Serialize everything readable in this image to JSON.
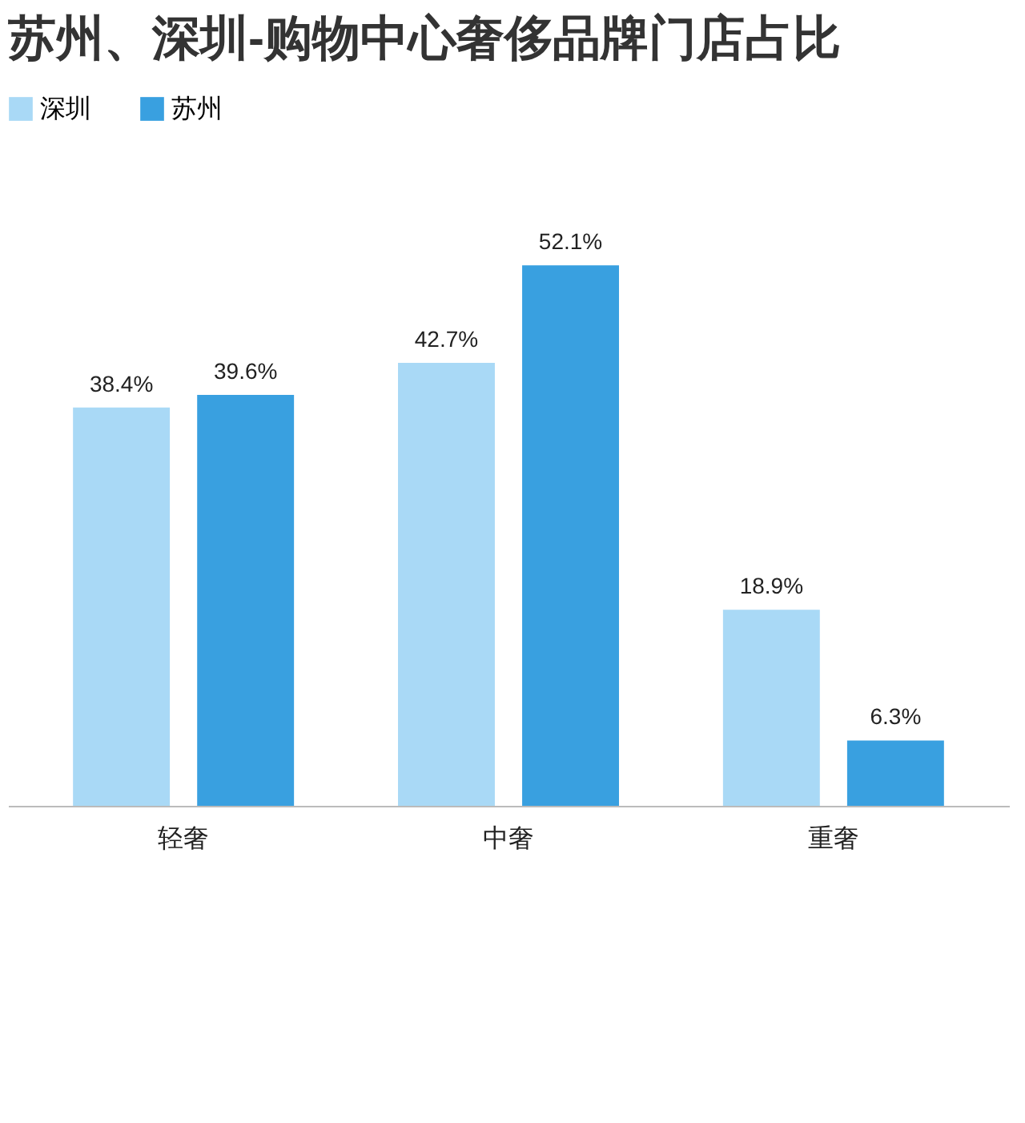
{
  "chart_data": {
    "type": "bar",
    "title": "苏州、深圳-购物中心奢侈品牌门店占比",
    "categories": [
      "轻奢",
      "中奢",
      "重奢"
    ],
    "series": [
      {
        "name": "深圳",
        "color": "#a9d9f6",
        "values": [
          38.4,
          42.7,
          18.9
        ],
        "value_labels": [
          "38.4%",
          "42.7%",
          "18.9%"
        ]
      },
      {
        "name": "苏州",
        "color": "#39a0e0",
        "values": [
          39.6,
          52.1,
          6.3
        ],
        "value_labels": [
          "39.6%",
          "52.1%",
          "6.3%"
        ]
      }
    ],
    "legend": "top"
  }
}
